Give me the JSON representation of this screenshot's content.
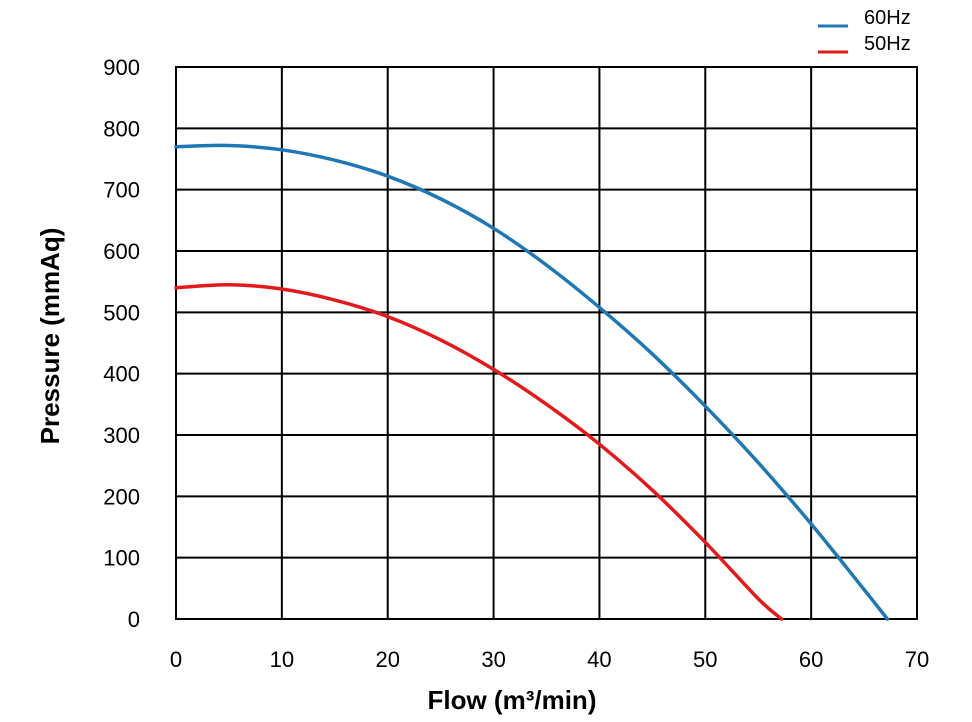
{
  "chart_data": {
    "type": "line",
    "title": "",
    "xlabel": "Flow (m³/min)",
    "ylabel": "Pressure (mmAq)",
    "xlim": [
      0,
      70
    ],
    "ylim": [
      0,
      900
    ],
    "xticks": [
      0,
      10,
      20,
      30,
      40,
      50,
      60,
      70
    ],
    "yticks": [
      0,
      100,
      200,
      300,
      400,
      500,
      600,
      700,
      800,
      900
    ],
    "grid": true,
    "legend_position": "top-right-outside",
    "series": [
      {
        "name": "60Hz",
        "color": "#1f77b4",
        "x": [
          0,
          5,
          10,
          15,
          20,
          25,
          30,
          35,
          40,
          45,
          50,
          55,
          60,
          65,
          67.2
        ],
        "y": [
          770,
          772,
          765,
          748,
          722,
          685,
          637,
          577,
          508,
          432,
          347,
          255,
          155,
          48,
          0
        ]
      },
      {
        "name": "50Hz",
        "color": "#e31a1c",
        "x": [
          0,
          5,
          10,
          15,
          20,
          25,
          30,
          35,
          40,
          45,
          50,
          55,
          57.2
        ],
        "y": [
          540,
          545,
          538,
          520,
          493,
          455,
          407,
          350,
          285,
          210,
          125,
          33,
          0
        ]
      }
    ]
  }
}
